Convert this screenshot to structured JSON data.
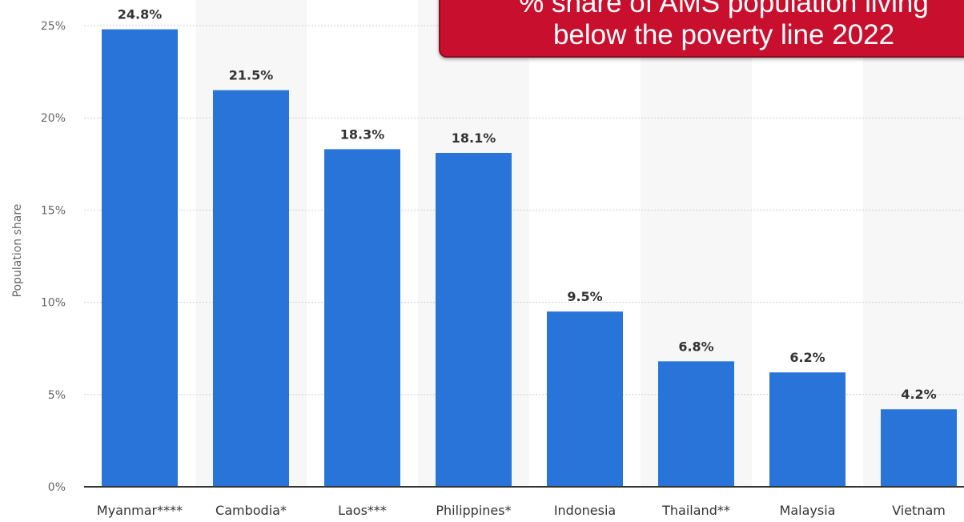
{
  "banner": {
    "line1": "% share of AMS population living",
    "line2": "below the poverty line 2022"
  },
  "colors": {
    "bar": "#2874d9",
    "band": "#f7f7f7",
    "grid": "#cfcfcf",
    "axis": "#333333",
    "text": "#333333",
    "tick": "#666666",
    "banner": "#c8102e"
  },
  "chart_data": {
    "type": "bar",
    "categories": [
      "Myanmar****",
      "Cambodia*",
      "Laos***",
      "Philippines*",
      "Indonesia",
      "Thailand**",
      "Malaysia",
      "Vietnam"
    ],
    "values": [
      24.8,
      21.5,
      18.3,
      18.1,
      9.5,
      6.8,
      6.2,
      4.2
    ],
    "value_labels": [
      "24.8%",
      "21.5%",
      "18.3%",
      "18.1%",
      "9.5%",
      "6.8%",
      "6.2%",
      "4.2%"
    ],
    "ylabel": "Population share",
    "ylim": [
      0,
      25
    ],
    "yticks": [
      0,
      5,
      10,
      15,
      20,
      25
    ],
    "ytick_labels": [
      "0%",
      "5%",
      "10%",
      "15%",
      "20%",
      "25%"
    ],
    "grid": true
  }
}
